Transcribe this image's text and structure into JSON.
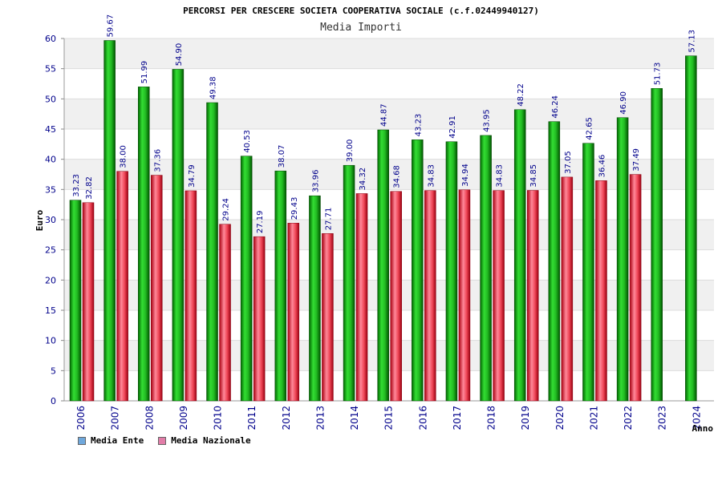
{
  "chart_data": {
    "type": "bar",
    "title": "PERCORSI PER CRESCERE SOCIETA COOPERATIVA SOCIALE (c.f.02449940127)",
    "subtitle": "Media Importi",
    "xlabel": "Anno",
    "ylabel": "Euro",
    "ylim": [
      0,
      60
    ],
    "yticks": [
      "0",
      "5",
      "10",
      "15",
      "20",
      "25",
      "30",
      "35",
      "40",
      "45",
      "50",
      "55",
      "60"
    ],
    "grid": true,
    "legend_position": "bottom-left",
    "categories": [
      "2006",
      "2007",
      "2008",
      "2009",
      "2010",
      "2011",
      "2012",
      "2013",
      "2014",
      "2015",
      "2016",
      "2017",
      "2018",
      "2019",
      "2020",
      "2021",
      "2022",
      "2023",
      "2024"
    ],
    "series": [
      {
        "name": "Media Ente",
        "legend_color": "#6fa8dc",
        "color": "#00aa00",
        "values": [
          33.23,
          59.67,
          51.99,
          54.9,
          49.38,
          40.53,
          38.07,
          33.96,
          39.0,
          44.87,
          43.23,
          42.91,
          43.95,
          48.22,
          46.24,
          42.65,
          46.9,
          51.73,
          57.13
        ],
        "labels": [
          "33.23",
          "59.67",
          "51.99",
          "54.90",
          "49.38",
          "40.53",
          "38.07",
          "33.96",
          "39.00",
          "44.87",
          "43.23",
          "42.91",
          "43.95",
          "48.22",
          "46.24",
          "42.65",
          "46.90",
          "51.73",
          "57.13"
        ]
      },
      {
        "name": "Media Nazionale",
        "legend_color": "#e27da8",
        "color": "#dd2233",
        "values": [
          32.82,
          38.0,
          37.36,
          34.79,
          29.24,
          27.19,
          29.43,
          27.71,
          34.32,
          34.68,
          34.83,
          34.94,
          34.83,
          34.85,
          37.05,
          36.46,
          37.49,
          null,
          null
        ],
        "labels": [
          "32.82",
          "38.00",
          "37.36",
          "34.79",
          "29.24",
          "27.19",
          "29.43",
          "27.71",
          "34.32",
          "34.68",
          "34.83",
          "34.94",
          "34.83",
          "34.85",
          "37.05",
          "36.46",
          "37.49",
          "",
          ""
        ]
      }
    ]
  }
}
